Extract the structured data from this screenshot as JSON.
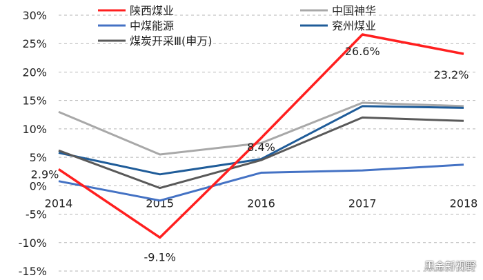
{
  "chart_data": {
    "type": "line",
    "x": [
      "2014",
      "2015",
      "2016",
      "2017",
      "2018"
    ],
    "ylim": [
      -15,
      30
    ],
    "yticks": [
      -15,
      -10,
      -5,
      0,
      5,
      10,
      15,
      20,
      25,
      30
    ],
    "ytick_labels": [
      "-15%",
      "-10%",
      "-5%",
      "0%",
      "5%",
      "10%",
      "15%",
      "20%",
      "25%",
      "30%"
    ],
    "xtick_labels": [
      "2014",
      "2015",
      "2016",
      "2017",
      "2018"
    ],
    "grid": true,
    "legend_position": "top",
    "series": [
      {
        "name": "陕西煤业",
        "color": "#ff1f1f",
        "values": [
          2.9,
          -9.1,
          8.4,
          26.6,
          23.2
        ]
      },
      {
        "name": "中国神华",
        "color": "#a8a8a8",
        "values": [
          13.0,
          5.5,
          7.5,
          14.6,
          14.0
        ]
      },
      {
        "name": "中煤能源",
        "color": "#4472c4",
        "values": [
          0.8,
          -2.6,
          2.3,
          2.7,
          3.7
        ]
      },
      {
        "name": "兖州煤业",
        "color": "#1f5c99",
        "values": [
          5.8,
          2.0,
          4.7,
          14.0,
          13.7
        ]
      },
      {
        "name": "煤炭开采Ⅲ(申万)",
        "color": "#595959",
        "values": [
          6.2,
          -0.4,
          4.5,
          12.0,
          11.4
        ]
      }
    ],
    "data_labels": [
      "2.9%",
      "-9.1%",
      "8.4%",
      "26.6%",
      "23.2%"
    ]
  },
  "watermark": "黑金新视野"
}
